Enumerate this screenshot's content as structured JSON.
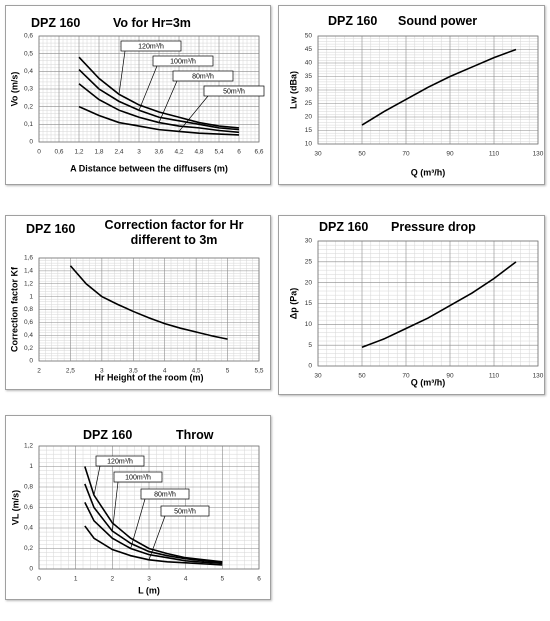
{
  "chart_data": [
    {
      "type": "line",
      "label": "DPZ 160",
      "title": "Vo for Hr=3m",
      "x_label": "A Distance between the diffusers (m)",
      "y_label": "Vo (m/s)",
      "x": [
        1.2,
        1.8,
        2.4,
        3,
        3.6,
        4.2,
        4.8,
        5.4,
        6
      ],
      "series": [
        {
          "name": "120m³/h",
          "color": "#000000",
          "values": [
            0.48,
            0.36,
            0.27,
            0.21,
            0.17,
            0.14,
            0.11,
            0.09,
            0.08
          ]
        },
        {
          "name": "100m³/h",
          "color": "#000000",
          "values": [
            0.41,
            0.3,
            0.23,
            0.18,
            0.14,
            0.12,
            0.1,
            0.08,
            0.07
          ]
        },
        {
          "name": "80m³/h",
          "color": "#000000",
          "values": [
            0.33,
            0.24,
            0.18,
            0.14,
            0.11,
            0.09,
            0.08,
            0.065,
            0.055
          ]
        },
        {
          "name": "50m³/h",
          "color": "#000000",
          "values": [
            0.2,
            0.15,
            0.11,
            0.09,
            0.07,
            0.06,
            0.05,
            0.045,
            0.04
          ]
        }
      ],
      "xlim": [
        0,
        6.6
      ],
      "ylim": [
        0,
        0.6
      ],
      "xticks": [
        0,
        {
          "value": 0.6,
          "label": "0,6"
        },
        {
          "value": 1.2,
          "label": "1,2"
        },
        {
          "value": 1.8,
          "label": "1,8"
        },
        {
          "value": 2.4,
          "label": "2,4"
        },
        3,
        {
          "value": 3.6,
          "label": "3,6"
        },
        {
          "value": 4.2,
          "label": "4,2"
        },
        {
          "value": 4.8,
          "label": "4,8"
        },
        {
          "value": 5.4,
          "label": "5,4"
        },
        6,
        {
          "value": 6.6,
          "label": "6,6"
        }
      ],
      "yticks": [
        0,
        {
          "value": 0.1,
          "label": "0,1"
        },
        {
          "value": 0.2,
          "label": "0,2"
        },
        {
          "value": 0.3,
          "label": "0,3"
        },
        {
          "value": 0.4,
          "label": "0,4"
        },
        {
          "value": 0.5,
          "label": "0,5"
        },
        {
          "value": 0.6,
          "label": "0,6"
        }
      ],
      "grid": true
    },
    {
      "type": "line",
      "label": "DPZ 160",
      "title": "Sound power",
      "x_label": "Q (m³/h)",
      "y_label": "Lw (dBa)",
      "x": [
        50,
        60,
        70,
        80,
        90,
        100,
        110,
        120
      ],
      "values": [
        17,
        22,
        26.5,
        31,
        35,
        38.5,
        42,
        45
      ],
      "color": "#000000",
      "xlim": [
        30,
        130
      ],
      "ylim": [
        10,
        50
      ],
      "xticks": [
        30,
        50,
        70,
        90,
        110,
        130
      ],
      "yticks": [
        10,
        15,
        20,
        25,
        30,
        35,
        40,
        45,
        50
      ],
      "grid": true
    },
    {
      "type": "line",
      "label": "DPZ 160",
      "title": "Correction factor for Hr different to 3m",
      "x_label": "Hr Height of the room (m)",
      "y_label": "Correction factor Kf",
      "x": [
        2.5,
        2.75,
        3,
        3.25,
        3.5,
        3.75,
        4,
        4.25,
        4.5,
        4.75,
        5
      ],
      "values": [
        1.48,
        1.2,
        1.0,
        0.88,
        0.77,
        0.67,
        0.58,
        0.51,
        0.45,
        0.39,
        0.34
      ],
      "color": "#000000",
      "xlim": [
        2,
        5.5
      ],
      "ylim": [
        0,
        1.6
      ],
      "xticks": [
        2,
        {
          "value": 2.5,
          "label": "2,5"
        },
        3,
        {
          "value": 3.5,
          "label": "3,5"
        },
        4,
        {
          "value": 4.5,
          "label": "4,5"
        },
        5,
        {
          "value": 5.5,
          "label": "5,5"
        }
      ],
      "yticks": [
        0,
        {
          "value": 0.2,
          "label": "0,2"
        },
        {
          "value": 0.4,
          "label": "0,4"
        },
        {
          "value": 0.6,
          "label": "0,6"
        },
        {
          "value": 0.8,
          "label": "0,8"
        },
        1,
        {
          "value": 1.2,
          "label": "1,2"
        },
        {
          "value": 1.4,
          "label": "1,4"
        },
        {
          "value": 1.6,
          "label": "1,6"
        }
      ],
      "grid": true
    },
    {
      "type": "line",
      "label": "DPZ 160",
      "title": "Pressure drop",
      "x_label": "Q (m³/h)",
      "y_label": "Δp (Pa)",
      "x": [
        50,
        60,
        70,
        80,
        90,
        100,
        110,
        120
      ],
      "values": [
        4.5,
        6.5,
        9,
        11.5,
        14.5,
        17.5,
        21,
        25
      ],
      "color": "#000000",
      "xlim": [
        30,
        130
      ],
      "ylim": [
        0,
        30
      ],
      "xticks": [
        30,
        50,
        70,
        90,
        110,
        130
      ],
      "yticks": [
        0,
        5,
        10,
        15,
        20,
        25,
        30
      ],
      "grid": true
    },
    {
      "type": "line",
      "label": "DPZ 160",
      "title": "Throw",
      "x_label": "L (m)",
      "y_label": "VL (m/s)",
      "x": [
        1.25,
        1.5,
        2,
        2.5,
        3,
        3.5,
        4,
        4.5,
        5
      ],
      "series": [
        {
          "name": "120m³/h",
          "color": "#000000",
          "values": [
            1.0,
            0.72,
            0.45,
            0.3,
            0.2,
            0.15,
            0.11,
            0.09,
            0.07
          ]
        },
        {
          "name": "100m³/h",
          "color": "#000000",
          "values": [
            0.83,
            0.6,
            0.37,
            0.25,
            0.17,
            0.13,
            0.1,
            0.08,
            0.065
          ]
        },
        {
          "name": "80m³/h",
          "color": "#000000",
          "values": [
            0.65,
            0.47,
            0.3,
            0.2,
            0.14,
            0.11,
            0.08,
            0.065,
            0.055
          ]
        },
        {
          "name": "50m³/h",
          "color": "#000000",
          "values": [
            0.42,
            0.3,
            0.19,
            0.13,
            0.09,
            0.07,
            0.06,
            0.05,
            0.04
          ]
        }
      ],
      "xlim": [
        0,
        6
      ],
      "ylim": [
        0,
        1.2
      ],
      "xticks": [
        0,
        1,
        2,
        3,
        4,
        5,
        6
      ],
      "yticks": [
        0,
        {
          "value": 0.2,
          "label": "0,2"
        },
        {
          "value": 0.4,
          "label": "0,4"
        },
        {
          "value": 0.6,
          "label": "0,6"
        },
        {
          "value": 0.8,
          "label": "0,8"
        },
        1,
        {
          "value": 1.2,
          "label": "1,2"
        }
      ],
      "grid": true
    }
  ]
}
